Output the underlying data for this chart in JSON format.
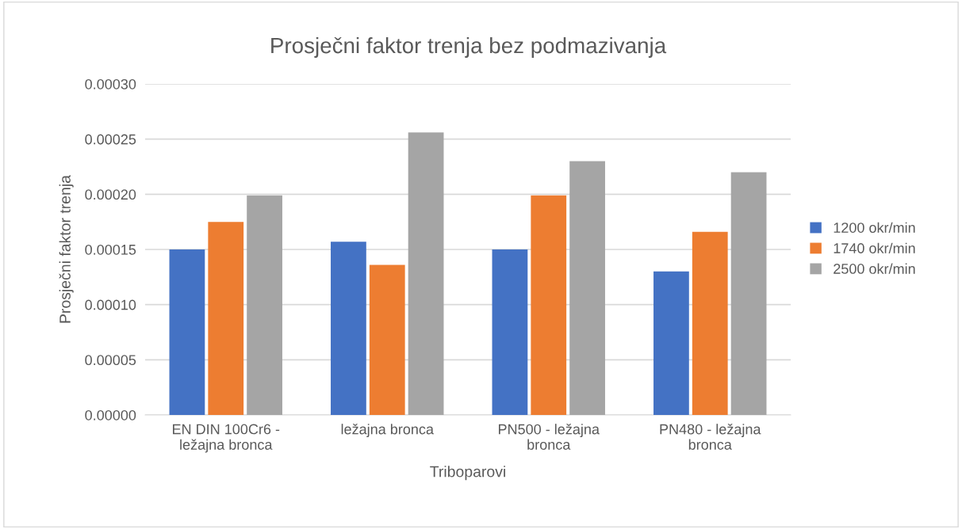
{
  "chart_data": {
    "type": "bar",
    "title": "Prosječni faktor trenja bez podmazivanja",
    "xlabel": "Triboparovi",
    "ylabel": "Prosječni faktor trenja",
    "categories": [
      "EN DIN 100Cr6 -\nležajna bronca",
      "ležajna bronca",
      "PN500 - ležajna\nbronca",
      "PN480 - ležajna\nbronca"
    ],
    "series": [
      {
        "name": "1200 okr/min",
        "color": "#4472c4",
        "values": [
          0.00015,
          0.000157,
          0.00015,
          0.00013
        ]
      },
      {
        "name": "1740 okr/min",
        "color": "#ed7d31",
        "values": [
          0.000175,
          0.000136,
          0.000199,
          0.000166
        ]
      },
      {
        "name": "2500 okr/min",
        "color": "#a5a5a5",
        "values": [
          0.000199,
          0.000256,
          0.00023,
          0.00022
        ]
      }
    ],
    "ylim": [
      0,
      0.0003
    ],
    "yticks": [
      {
        "value": 0,
        "label": "0.00000"
      },
      {
        "value": 5e-05,
        "label": "0.00005"
      },
      {
        "value": 0.0001,
        "label": "0.00010"
      },
      {
        "value": 0.00015,
        "label": "0.00015"
      },
      {
        "value": 0.0002,
        "label": "0.00020"
      },
      {
        "value": 0.00025,
        "label": "0.00025"
      },
      {
        "value": 0.0003,
        "label": "0.00030"
      }
    ],
    "grid": "y",
    "legend": "right"
  }
}
